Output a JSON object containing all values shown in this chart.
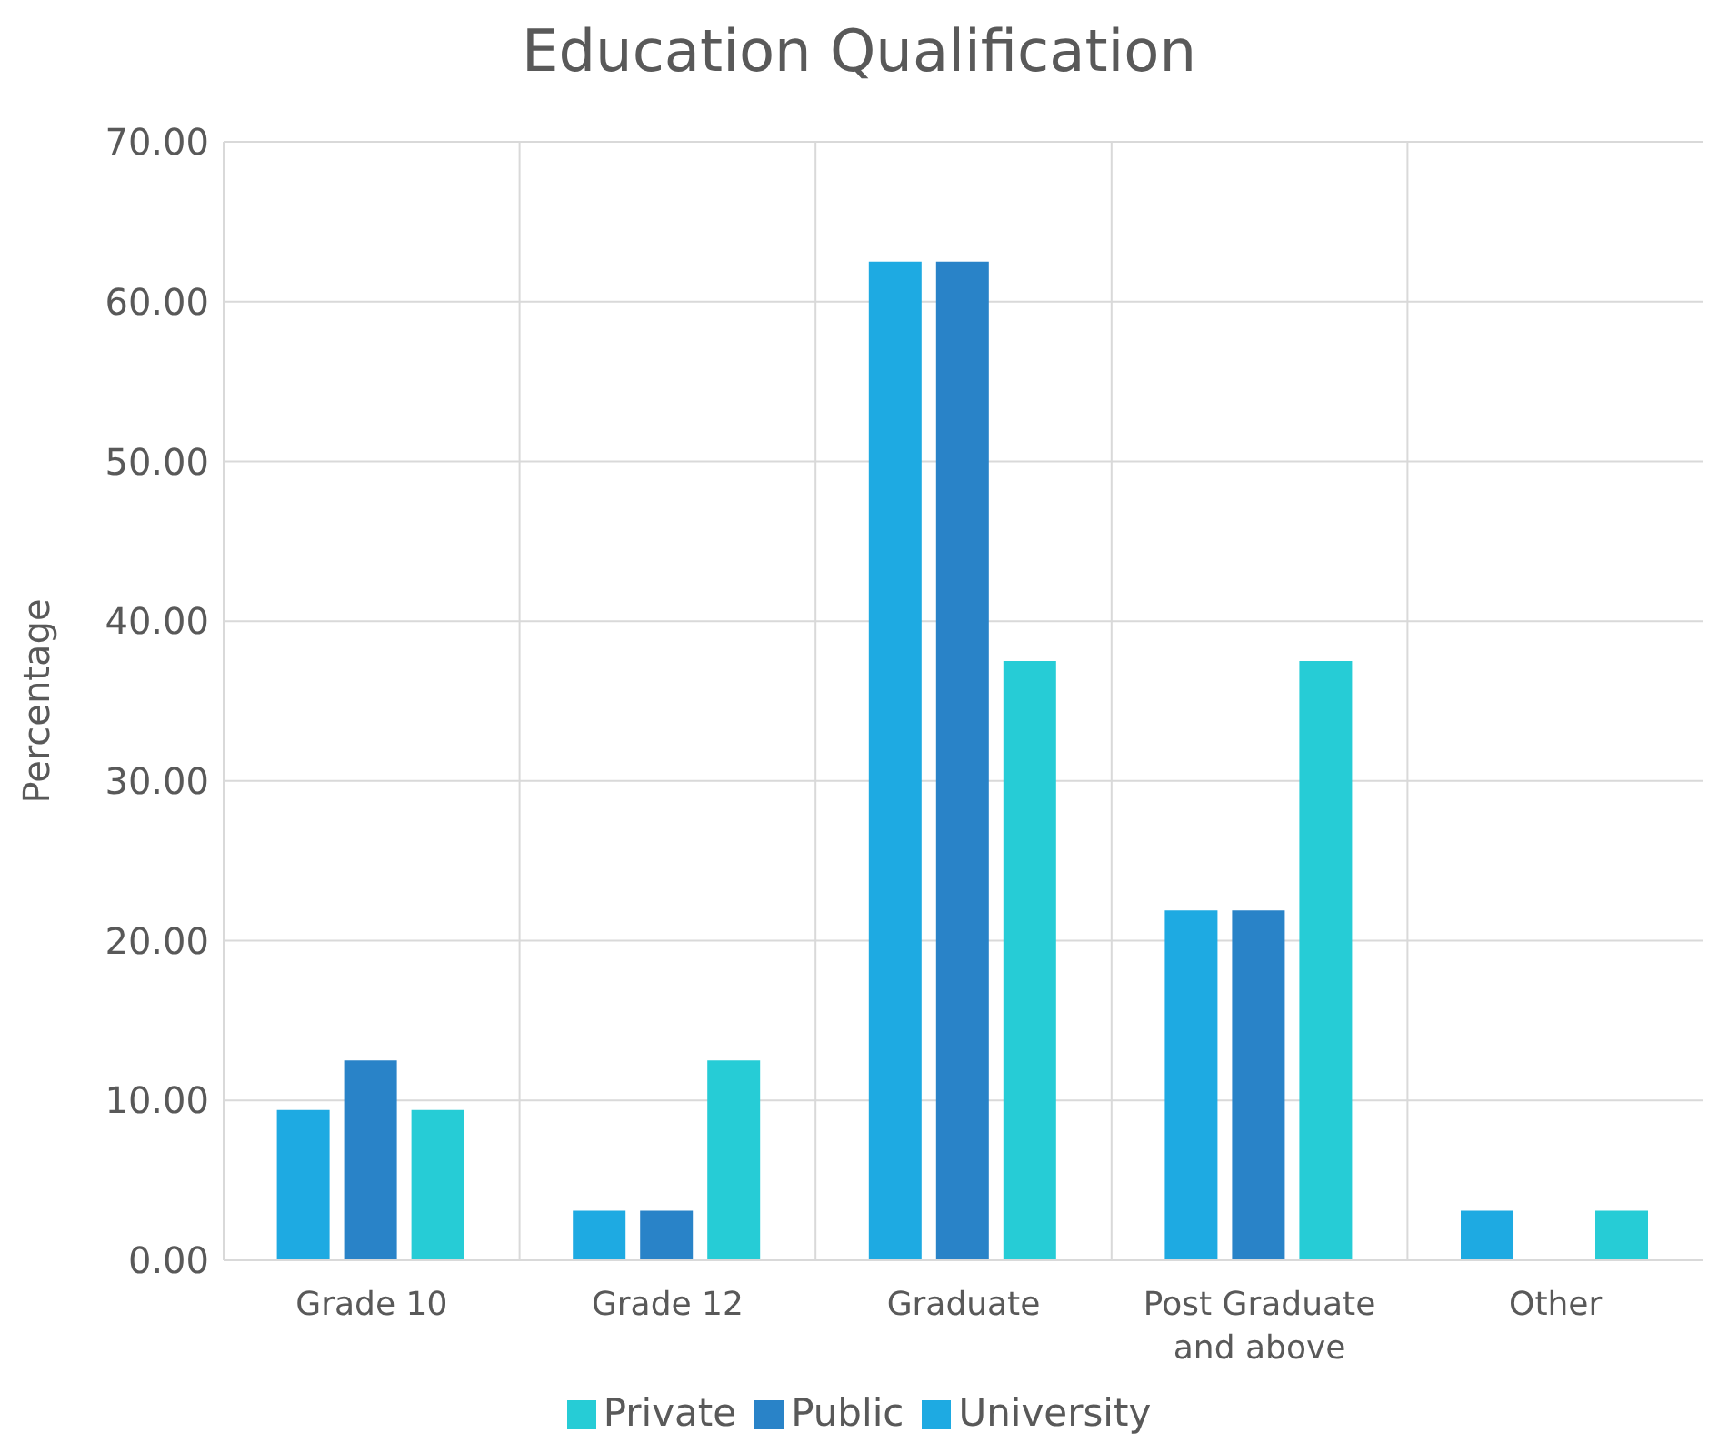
{
  "chart_data": {
    "type": "bar",
    "title": "Education Qualification",
    "ylabel": "Percentage",
    "categories": [
      "Grade 10",
      "Grade 12",
      "Graduate",
      "Post Graduate and above",
      "Other"
    ],
    "series": [
      {
        "name": "University",
        "color": "#1eaae2",
        "values": [
          9.4,
          3.1,
          62.5,
          21.9,
          3.1
        ]
      },
      {
        "name": "Public",
        "color": "#2983c8",
        "values": [
          12.5,
          3.1,
          62.5,
          21.9,
          0
        ]
      },
      {
        "name": "Private",
        "color": "#26ccd6",
        "values": [
          9.4,
          12.5,
          37.5,
          37.5,
          3.1
        ]
      }
    ],
    "ylim": [
      0,
      70
    ],
    "yticks": [
      {
        "value": 0,
        "label": "0.00"
      },
      {
        "value": 10,
        "label": "10.00"
      },
      {
        "value": 20,
        "label": "20.00"
      },
      {
        "value": 30,
        "label": "30.00"
      },
      {
        "value": 40,
        "label": "40.00"
      },
      {
        "value": 50,
        "label": "50.00"
      },
      {
        "value": 60,
        "label": "60.00"
      },
      {
        "value": 70,
        "label": "70.00"
      }
    ],
    "grid": true,
    "legend": "bottom"
  }
}
